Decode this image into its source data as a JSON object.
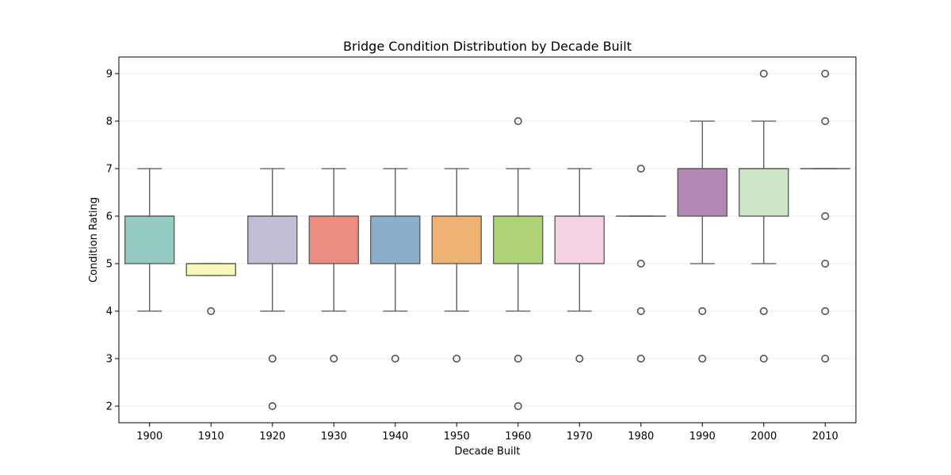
{
  "chart_data": {
    "type": "box",
    "title": "Bridge Condition Distribution by Decade Built",
    "xlabel": "Decade Built",
    "ylabel": "Condition Rating",
    "ylim": [
      1.65,
      9.35
    ],
    "yticks": [
      2,
      3,
      4,
      5,
      6,
      7,
      8,
      9
    ],
    "grid": "horizontal",
    "categories": [
      "1900",
      "1910",
      "1920",
      "1930",
      "1940",
      "1950",
      "1960",
      "1970",
      "1980",
      "1990",
      "2000",
      "2010"
    ],
    "boxes": [
      {
        "category": "1900",
        "color": "#96cbc3",
        "whisker_low": 4,
        "q1": 5,
        "median": 6,
        "q3": 6,
        "whisker_high": 7,
        "outliers": []
      },
      {
        "category": "1910",
        "color": "#f7f7ba",
        "whisker_low": 4.75,
        "q1": 4.75,
        "median": 5,
        "q3": 5,
        "whisker_high": 5,
        "outliers": [
          4
        ]
      },
      {
        "category": "1920",
        "color": "#c1bed6",
        "whisker_low": 4,
        "q1": 5,
        "median": 6,
        "q3": 6,
        "whisker_high": 7,
        "outliers": [
          3,
          2
        ]
      },
      {
        "category": "1930",
        "color": "#eb8d81",
        "whisker_low": 4,
        "q1": 5,
        "median": 6,
        "q3": 6,
        "whisker_high": 7,
        "outliers": [
          3
        ]
      },
      {
        "category": "1940",
        "color": "#8bafca",
        "whisker_low": 4,
        "q1": 5,
        "median": 6,
        "q3": 6,
        "whisker_high": 7,
        "outliers": [
          3
        ]
      },
      {
        "category": "1950",
        "color": "#eeb373",
        "whisker_low": 4,
        "q1": 5,
        "median": 6,
        "q3": 6,
        "whisker_high": 7,
        "outliers": [
          3
        ]
      },
      {
        "category": "1960",
        "color": "#b0d276",
        "whisker_low": 4,
        "q1": 5,
        "median": 6,
        "q3": 6,
        "whisker_high": 7,
        "outliers": [
          8,
          3,
          2
        ]
      },
      {
        "category": "1970",
        "color": "#f5d1e4",
        "whisker_low": 4,
        "q1": 5,
        "median": 6,
        "q3": 6,
        "whisker_high": 7,
        "outliers": [
          3
        ]
      },
      {
        "category": "1980",
        "color": "#d9d9d9",
        "whisker_low": 6,
        "q1": 6,
        "median": 6,
        "q3": 6,
        "whisker_high": 6,
        "outliers": [
          7,
          5,
          4,
          3
        ]
      },
      {
        "category": "1990",
        "color": "#b488b5",
        "whisker_low": 5,
        "q1": 6,
        "median": 7,
        "q3": 7,
        "whisker_high": 8,
        "outliers": [
          4,
          3
        ]
      },
      {
        "category": "2000",
        "color": "#cfe6c8",
        "whisker_low": 5,
        "q1": 6,
        "median": 7,
        "q3": 7,
        "whisker_high": 8,
        "outliers": [
          9,
          4,
          3
        ]
      },
      {
        "category": "2010",
        "color": "#f5e88b",
        "whisker_low": 7,
        "q1": 7,
        "median": 7,
        "q3": 7,
        "whisker_high": 7,
        "outliers": [
          9,
          8,
          6,
          5,
          4,
          3
        ]
      }
    ]
  }
}
